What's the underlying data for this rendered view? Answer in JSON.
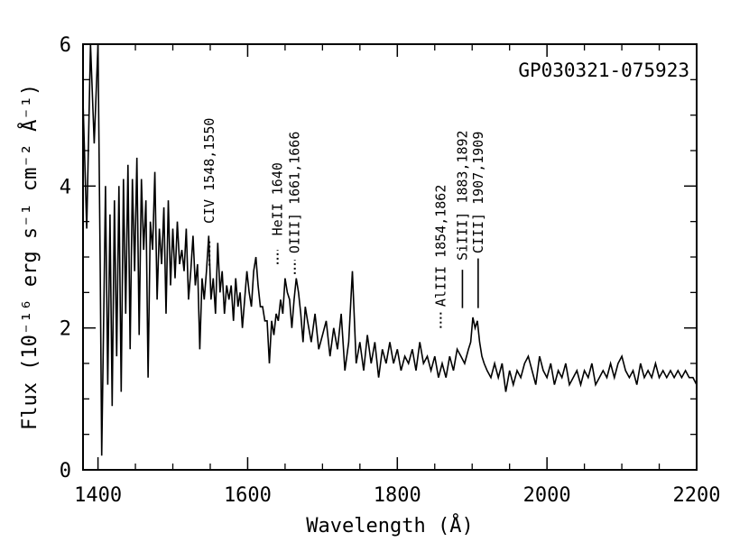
{
  "chart_data": {
    "type": "line",
    "title": "GP030321-075923",
    "xlabel": "Wavelength (Å)",
    "ylabel": "Flux (10⁻¹⁶ erg s⁻¹ cm⁻² Å⁻¹)",
    "xlim": [
      1380,
      2200
    ],
    "ylim": [
      0,
      6
    ],
    "x_ticks": [
      1400,
      1600,
      1800,
      2000,
      2200
    ],
    "x_tick_labels": [
      "1400",
      "1600",
      "1800",
      "2000",
      "2200"
    ],
    "y_ticks": [
      0,
      2,
      4,
      6
    ],
    "y_tick_labels": [
      "0",
      "2",
      "4",
      "6"
    ],
    "grid": false,
    "series": [
      {
        "name": "spectrum",
        "x": [
          1380,
          1385,
          1390,
          1395,
          1400,
          1403,
          1405,
          1408,
          1410,
          1413,
          1416,
          1419,
          1422,
          1425,
          1428,
          1431,
          1434,
          1437,
          1440,
          1443,
          1446,
          1449,
          1452,
          1455,
          1458,
          1461,
          1464,
          1467,
          1470,
          1473,
          1476,
          1479,
          1482,
          1485,
          1488,
          1491,
          1494,
          1497,
          1500,
          1503,
          1506,
          1509,
          1512,
          1515,
          1518,
          1521,
          1524,
          1527,
          1530,
          1533,
          1536,
          1539,
          1542,
          1545,
          1548,
          1551,
          1554,
          1557,
          1560,
          1563,
          1566,
          1569,
          1572,
          1575,
          1578,
          1581,
          1584,
          1587,
          1590,
          1593,
          1596,
          1599,
          1602,
          1605,
          1608,
          1611,
          1614,
          1617,
          1620,
          1623,
          1626,
          1629,
          1632,
          1635,
          1638,
          1641,
          1644,
          1647,
          1650,
          1653,
          1656,
          1659,
          1662,
          1665,
          1668,
          1671,
          1674,
          1677,
          1680,
          1685,
          1690,
          1695,
          1700,
          1705,
          1710,
          1715,
          1720,
          1725,
          1730,
          1735,
          1740,
          1745,
          1750,
          1755,
          1760,
          1765,
          1770,
          1775,
          1780,
          1785,
          1790,
          1795,
          1800,
          1805,
          1810,
          1815,
          1820,
          1825,
          1830,
          1835,
          1840,
          1845,
          1850,
          1855,
          1860,
          1865,
          1870,
          1875,
          1880,
          1885,
          1890,
          1895,
          1898,
          1901,
          1904,
          1907,
          1910,
          1913,
          1916,
          1920,
          1925,
          1930,
          1935,
          1940,
          1945,
          1950,
          1955,
          1960,
          1965,
          1970,
          1975,
          1980,
          1985,
          1990,
          1995,
          2000,
          2005,
          2010,
          2015,
          2020,
          2025,
          2030,
          2035,
          2040,
          2045,
          2050,
          2055,
          2060,
          2065,
          2070,
          2075,
          2080,
          2085,
          2090,
          2095,
          2100,
          2105,
          2110,
          2115,
          2120,
          2125,
          2130,
          2135,
          2140,
          2145,
          2150,
          2155,
          2160,
          2165,
          2170,
          2175,
          2180,
          2185,
          2190,
          2195,
          2200
        ],
        "y": [
          5.2,
          3.4,
          6.0,
          4.6,
          6.0,
          2.8,
          0.2,
          2.4,
          4.0,
          1.2,
          3.6,
          0.9,
          3.8,
          1.6,
          4.0,
          1.1,
          4.1,
          2.2,
          4.3,
          1.7,
          4.1,
          2.8,
          4.4,
          1.9,
          4.1,
          3.1,
          3.8,
          1.3,
          3.5,
          3.1,
          4.2,
          2.4,
          3.4,
          2.9,
          3.7,
          2.2,
          3.8,
          2.6,
          3.4,
          2.7,
          3.5,
          2.9,
          3.1,
          2.8,
          3.4,
          2.4,
          2.8,
          3.3,
          2.6,
          2.9,
          1.7,
          2.7,
          2.4,
          2.8,
          3.3,
          2.4,
          2.7,
          2.2,
          3.2,
          2.5,
          2.8,
          2.2,
          2.6,
          2.4,
          2.6,
          2.1,
          2.7,
          2.3,
          2.5,
          2.0,
          2.4,
          2.8,
          2.5,
          2.3,
          2.8,
          3.0,
          2.6,
          2.3,
          2.3,
          2.1,
          2.1,
          1.5,
          2.1,
          1.9,
          2.2,
          2.1,
          2.4,
          2.2,
          2.7,
          2.5,
          2.4,
          2.0,
          2.4,
          2.7,
          2.5,
          2.2,
          1.8,
          2.3,
          2.1,
          1.8,
          2.2,
          1.7,
          1.9,
          2.1,
          1.6,
          2.0,
          1.7,
          2.2,
          1.4,
          1.8,
          2.8,
          1.5,
          1.8,
          1.4,
          1.9,
          1.5,
          1.8,
          1.3,
          1.7,
          1.5,
          1.8,
          1.5,
          1.7,
          1.4,
          1.6,
          1.5,
          1.7,
          1.4,
          1.8,
          1.5,
          1.6,
          1.4,
          1.6,
          1.3,
          1.5,
          1.3,
          1.6,
          1.4,
          1.7,
          1.6,
          1.5,
          1.7,
          1.8,
          2.15,
          2.0,
          2.1,
          1.8,
          1.6,
          1.5,
          1.4,
          1.3,
          1.5,
          1.3,
          1.5,
          1.1,
          1.4,
          1.2,
          1.4,
          1.3,
          1.5,
          1.6,
          1.4,
          1.2,
          1.6,
          1.4,
          1.3,
          1.5,
          1.2,
          1.4,
          1.3,
          1.5,
          1.2,
          1.3,
          1.4,
          1.2,
          1.4,
          1.3,
          1.5,
          1.2,
          1.3,
          1.4,
          1.3,
          1.5,
          1.3,
          1.5,
          1.6,
          1.4,
          1.3,
          1.4,
          1.2,
          1.5,
          1.3,
          1.4,
          1.3,
          1.5,
          1.3,
          1.4,
          1.3,
          1.4,
          1.3,
          1.4,
          1.3,
          1.4,
          1.3,
          1.3,
          1.2
        ]
      }
    ],
    "annotations": [
      {
        "text": "CIV 1548,1550",
        "x": 1549,
        "y_text": 3.47,
        "marker": "dotted",
        "marker_y": [
          2.88,
          3.22
        ]
      },
      {
        "text": "HeII 1640",
        "x": 1640,
        "y_text": 3.3,
        "marker": "dotted",
        "marker_y": [
          2.9,
          3.1
        ]
      },
      {
        "text": "OIII] 1661,1666",
        "x": 1663,
        "y_text": 3.05,
        "marker": "dotted",
        "marker_y": [
          2.76,
          2.96
        ]
      },
      {
        "text": "AlIII 1854,1862",
        "x": 1858,
        "y_text": 2.3,
        "marker": "dotted",
        "marker_y": [
          2.0,
          2.25
        ]
      },
      {
        "text": "SiIII] 1883,1892",
        "x": 1887,
        "y_text": 2.95,
        "marker": "solid",
        "marker_y": [
          2.28,
          2.82
        ]
      },
      {
        "text": "CIII] 1907,1909",
        "x": 1908,
        "y_text": 3.05,
        "marker": "solid",
        "marker_y": [
          2.28,
          2.98
        ]
      }
    ]
  }
}
